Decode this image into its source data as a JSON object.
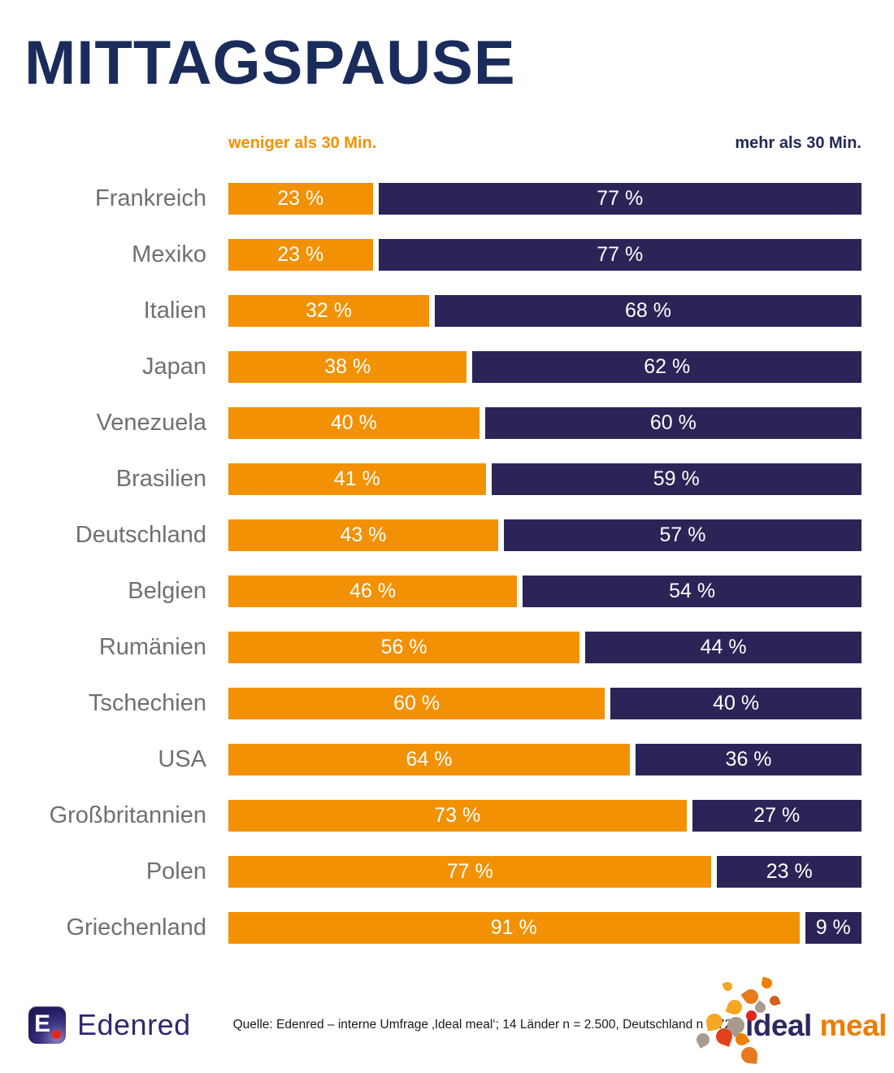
{
  "header": {
    "title": "MITTAGSPAUSE"
  },
  "chart_data": {
    "type": "bar",
    "orientation": "horizontal",
    "stacked": true,
    "title": "MITTAGSPAUSE",
    "unit": "%",
    "value_suffix": " %",
    "xlim": [
      0,
      100
    ],
    "legend_position": "top",
    "grid": false,
    "series": [
      {
        "name": "weniger als 30 Min.",
        "color": "#F29104"
      },
      {
        "name": "mehr als 30 Min.",
        "color": "#2B2457"
      }
    ],
    "categories": [
      "Frankreich",
      "Mexiko",
      "Italien",
      "Japan",
      "Venezuela",
      "Brasilien",
      "Deutschland",
      "Belgien",
      "Rumänien",
      "Tschechien",
      "USA",
      "Großbritannien",
      "Polen",
      "Griechenland"
    ],
    "rows": [
      {
        "country": "Frankreich",
        "less": 23,
        "more": 77
      },
      {
        "country": "Mexiko",
        "less": 23,
        "more": 77
      },
      {
        "country": "Italien",
        "less": 32,
        "more": 68
      },
      {
        "country": "Japan",
        "less": 38,
        "more": 62
      },
      {
        "country": "Venezuela",
        "less": 40,
        "more": 60
      },
      {
        "country": "Brasilien",
        "less": 41,
        "more": 59
      },
      {
        "country": "Deutschland",
        "less": 43,
        "more": 57
      },
      {
        "country": "Belgien",
        "less": 46,
        "more": 54
      },
      {
        "country": "Rumänien",
        "less": 56,
        "more": 44
      },
      {
        "country": "Tschechien",
        "less": 60,
        "more": 40
      },
      {
        "country": "USA",
        "less": 64,
        "more": 36
      },
      {
        "country": "Großbritannien",
        "less": 73,
        "more": 27
      },
      {
        "country": "Polen",
        "less": 77,
        "more": 23
      },
      {
        "country": "Griechenland",
        "less": 91,
        "more": 9
      }
    ]
  },
  "footer": {
    "edenred_letter": "E",
    "edenred_wordmark": "Edenred",
    "source": "Quelle: Edenred – interne Umfrage ‚Ideal meal‘; 14 Länder n = 2.500, Deutschland n = 72",
    "ideal_meal": {
      "word1": "ideal",
      "word2": "meal"
    }
  },
  "colors": {
    "orange": "#F29104",
    "navy": "#2B2457",
    "title": "#1A2C5B",
    "label_gray": "#707070",
    "legend_left": "#F59100",
    "legend_right": "#232A56",
    "source_text": "#1A1A1A",
    "edenred_purple": "#2D2A6E",
    "ideal_navy": "#2B2960",
    "meal_orange": "#EE7D00"
  }
}
